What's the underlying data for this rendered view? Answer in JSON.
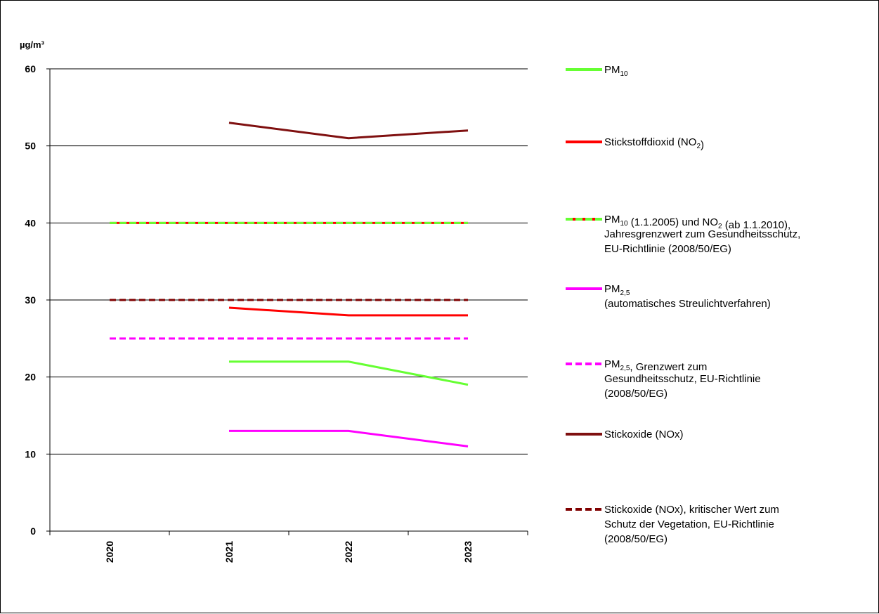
{
  "chart_data": {
    "type": "line",
    "ylabel": "µg/m³",
    "ylim": [
      0,
      60
    ],
    "yticks": [
      "0",
      "10",
      "20",
      "30",
      "40",
      "50",
      "60"
    ],
    "categories": [
      "2020",
      "2021",
      "2022",
      "2023"
    ],
    "grid": "horizontal",
    "legend_position": "right",
    "series": [
      {
        "key": "pm10",
        "name": "PM10",
        "name_parts": [
          [
            "PM",
            ""
          ],
          [
            "10",
            "sub"
          ]
        ],
        "color": "#66ff33",
        "style": "solid",
        "values": [
          null,
          22,
          22,
          19
        ]
      },
      {
        "key": "no2",
        "name": "Stickstoffdioxid (NO2)",
        "name_parts": [
          [
            "Stickstoffdioxid (NO",
            ""
          ],
          [
            "2",
            "sub"
          ],
          [
            ")",
            ""
          ]
        ],
        "color": "#ff0000",
        "style": "solid",
        "values": [
          null,
          29,
          28,
          28
        ]
      },
      {
        "key": "limit40",
        "name": "PM10 (1.1.2005) und NO2 (ab 1.1.2010), Jahresgrenzwert zum Gesundheitsschutz, EU-Richtlinie (2008/50/EG)",
        "name_lines": [
          [
            [
              "PM",
              ""
            ],
            [
              "10",
              "sub"
            ],
            [
              " (1.1.2005) und NO",
              ""
            ],
            [
              "2",
              "sub"
            ],
            [
              " (ab 1.1.2010),",
              ""
            ]
          ],
          [
            [
              "Jahresgrenzwert  zum Gesundheitsschutz,",
              ""
            ]
          ],
          [
            [
              "EU-Richtlinie (2008/50/EG)",
              ""
            ]
          ]
        ],
        "color": "#66ff33",
        "color2": "#ff0000",
        "style": "dash-dual",
        "values": [
          40,
          40,
          40,
          40
        ]
      },
      {
        "key": "pm25",
        "name": "PM2,5 (automatisches Streulichtverfahren)",
        "name_lines": [
          [
            [
              "PM",
              ""
            ],
            [
              "2,5",
              "sub"
            ]
          ],
          [
            [
              "(automatisches  Streulichtverfahren)",
              ""
            ]
          ]
        ],
        "color": "#ff00ff",
        "style": "solid",
        "values": [
          null,
          13,
          13,
          11
        ]
      },
      {
        "key": "limit25",
        "name": "PM2,5, Grenzwert zum Gesundheitsschutz, EU-Richtlinie (2008/50/EG)",
        "name_lines": [
          [
            [
              "PM",
              ""
            ],
            [
              "2,5",
              "sub"
            ],
            [
              ",  Grenzwert  zum",
              ""
            ]
          ],
          [
            [
              "Gesundheitsschutz,   EU-Richtlinie",
              ""
            ]
          ],
          [
            [
              "(2008/50/EG)",
              ""
            ]
          ]
        ],
        "color": "#ff00ff",
        "style": "dashed",
        "values": [
          25,
          25,
          25,
          25
        ]
      },
      {
        "key": "nox",
        "name": "Stickoxide (NOx)",
        "name_parts": [
          [
            "Stickoxide (NOx)",
            ""
          ]
        ],
        "color": "#7f1010",
        "style": "solid",
        "values": [
          null,
          53,
          51,
          52
        ]
      },
      {
        "key": "limit30",
        "name": "Stickoxide (NOx), kritischer Wert zum Schutz der Vegetation, EU-Richtlinie (2008/50/EG)",
        "name_lines": [
          [
            [
              "Stickoxide (NOx), kritischer Wert zum",
              ""
            ]
          ],
          [
            [
              "Schutz der Vegetation, EU-Richtlinie",
              ""
            ]
          ],
          [
            [
              "(2008/50/EG)",
              ""
            ]
          ]
        ],
        "color": "#7f0000",
        "style": "dashed",
        "values": [
          30,
          30,
          30,
          30
        ]
      }
    ],
    "legend_order": [
      "pm10",
      "no2",
      "limit40",
      "pm25",
      "limit25",
      "nox",
      "limit30"
    ]
  }
}
